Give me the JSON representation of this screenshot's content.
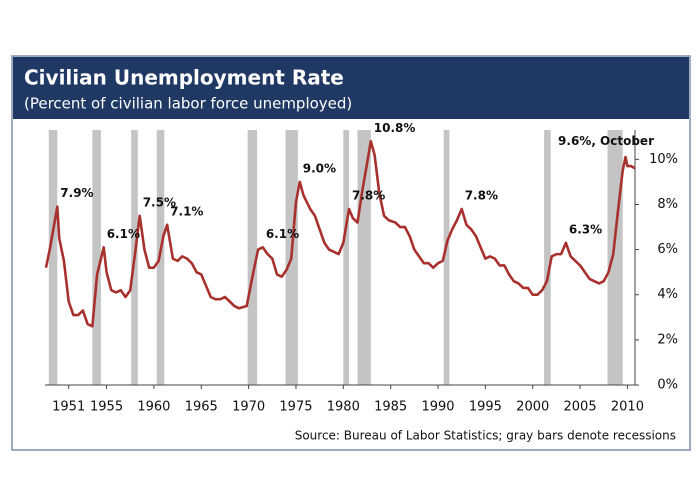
{
  "chart_data": {
    "type": "line",
    "title": "Civilian Unemployment Rate",
    "subtitle": "(Percent of civilian labor force unemployed)",
    "source": "Source: Bureau of Labor Statistics; gray bars denote recessions",
    "color": "#a8312e",
    "recession_color": "#c4c4c4",
    "xlim": [
      1948.5,
      2010.8
    ],
    "ylim": [
      0,
      11.3
    ],
    "xticks": [
      1951,
      1955,
      1960,
      1965,
      1970,
      1975,
      1980,
      1985,
      1990,
      1995,
      2000,
      2005,
      2010
    ],
    "yticks": [
      {
        "value": 0,
        "label": "0%"
      },
      {
        "value": 2,
        "label": "2%"
      },
      {
        "value": 4,
        "label": "4%"
      },
      {
        "value": 6,
        "label": "6%"
      },
      {
        "value": 8,
        "label": "8%"
      },
      {
        "value": 10,
        "label": "10%"
      }
    ],
    "recessions": [
      [
        1948.9,
        1949.8
      ],
      [
        1953.5,
        1954.4
      ],
      [
        1957.6,
        1958.3
      ],
      [
        1960.3,
        1961.1
      ],
      [
        1969.9,
        1970.9
      ],
      [
        1973.9,
        1975.2
      ],
      [
        1980.0,
        1980.6
      ],
      [
        1981.5,
        1982.9
      ],
      [
        1990.6,
        1991.2
      ],
      [
        2001.2,
        2001.9
      ],
      [
        2007.9,
        2009.5
      ]
    ],
    "x": [
      1948.6,
      1949.0,
      1949.8,
      1950.0,
      1950.5,
      1951.0,
      1951.5,
      1952.0,
      1952.5,
      1953.0,
      1953.5,
      1954.0,
      1954.7,
      1955.0,
      1955.5,
      1956.0,
      1956.5,
      1957.0,
      1957.5,
      1958.0,
      1958.5,
      1959.0,
      1959.5,
      1960.0,
      1960.5,
      1961.0,
      1961.4,
      1962.0,
      1962.5,
      1963.0,
      1963.5,
      1964.0,
      1964.5,
      1965.0,
      1965.5,
      1966.0,
      1966.5,
      1967.0,
      1967.5,
      1968.0,
      1968.5,
      1969.0,
      1969.8,
      1970.5,
      1971.0,
      1971.5,
      1972.0,
      1972.5,
      1973.0,
      1973.5,
      1974.0,
      1974.5,
      1975.0,
      1975.4,
      1975.8,
      1976.5,
      1977.0,
      1977.5,
      1978.0,
      1978.5,
      1979.0,
      1979.5,
      1980.0,
      1980.6,
      1981.0,
      1981.5,
      1982.0,
      1982.5,
      1982.9,
      1983.3,
      1983.8,
      1984.3,
      1984.8,
      1985.5,
      1986.0,
      1986.5,
      1987.0,
      1987.5,
      1988.0,
      1988.5,
      1989.0,
      1989.5,
      1990.0,
      1990.5,
      1991.0,
      1991.5,
      1992.0,
      1992.5,
      1993.0,
      1993.5,
      1994.0,
      1994.5,
      1995.0,
      1995.5,
      1996.0,
      1996.5,
      1997.0,
      1997.5,
      1998.0,
      1998.5,
      1999.0,
      1999.5,
      2000.0,
      2000.5,
      2001.0,
      2001.5,
      2002.0,
      2002.5,
      2003.0,
      2003.5,
      2004.0,
      2004.5,
      2005.0,
      2005.5,
      2006.0,
      2006.5,
      2007.0,
      2007.5,
      2008.0,
      2008.5,
      2009.0,
      2009.5,
      2009.8,
      2010.0,
      2010.4,
      2010.8
    ],
    "values": [
      5.2,
      6.0,
      7.9,
      6.5,
      5.5,
      3.7,
      3.1,
      3.1,
      3.3,
      2.7,
      2.6,
      4.9,
      6.1,
      5.0,
      4.2,
      4.1,
      4.2,
      3.9,
      4.2,
      5.8,
      7.5,
      6.0,
      5.2,
      5.2,
      5.5,
      6.6,
      7.1,
      5.6,
      5.5,
      5.7,
      5.6,
      5.4,
      5.0,
      4.9,
      4.4,
      3.9,
      3.8,
      3.8,
      3.9,
      3.7,
      3.5,
      3.4,
      3.5,
      5.0,
      6.0,
      6.1,
      5.8,
      5.6,
      4.9,
      4.8,
      5.1,
      5.6,
      8.1,
      9.0,
      8.4,
      7.8,
      7.5,
      6.9,
      6.3,
      6.0,
      5.9,
      5.8,
      6.3,
      7.8,
      7.4,
      7.2,
      8.6,
      9.8,
      10.8,
      10.2,
      8.5,
      7.5,
      7.3,
      7.2,
      7.0,
      7.0,
      6.6,
      6.0,
      5.7,
      5.4,
      5.4,
      5.2,
      5.4,
      5.5,
      6.4,
      6.9,
      7.3,
      7.8,
      7.1,
      6.9,
      6.6,
      6.1,
      5.6,
      5.7,
      5.6,
      5.3,
      5.3,
      4.9,
      4.6,
      4.5,
      4.3,
      4.3,
      4.0,
      4.0,
      4.2,
      4.6,
      5.7,
      5.8,
      5.8,
      6.3,
      5.7,
      5.5,
      5.3,
      5.0,
      4.7,
      4.6,
      4.5,
      4.6,
      5.0,
      5.8,
      7.7,
      9.5,
      10.1,
      9.7,
      9.7,
      9.6
    ],
    "annotations": [
      {
        "label": "7.9%",
        "x": 1949.8,
        "y": 7.9
      },
      {
        "label": "6.1%",
        "x": 1954.7,
        "y": 6.1
      },
      {
        "label": "7.5%",
        "x": 1958.5,
        "y": 7.5
      },
      {
        "label": "7.1%",
        "x": 1961.4,
        "y": 7.1
      },
      {
        "label": "6.1%",
        "x": 1971.5,
        "y": 6.1
      },
      {
        "label": "9.0%",
        "x": 1975.4,
        "y": 9.0
      },
      {
        "label": "7.8%",
        "x": 1980.6,
        "y": 7.8
      },
      {
        "label": "10.8%",
        "x": 1982.9,
        "y": 10.8
      },
      {
        "label": "7.8%",
        "x": 1992.5,
        "y": 7.8
      },
      {
        "label": "6.3%",
        "x": 2003.5,
        "y": 6.3
      },
      {
        "label": "9.6%, October",
        "x": 2010.8,
        "y": 9.6
      }
    ]
  }
}
